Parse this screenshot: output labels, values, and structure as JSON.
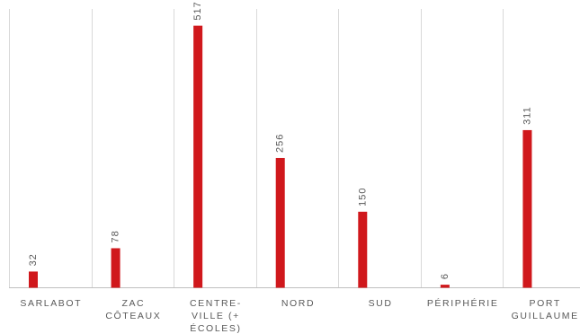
{
  "chart_data": {
    "type": "bar",
    "categories": [
      [
        "SARLABOT"
      ],
      [
        "ZAC",
        "CÔTEAUX"
      ],
      [
        "CENTRE-",
        "VILLE (+",
        "ÉCOLES)"
      ],
      [
        "NORD"
      ],
      [
        "SUD"
      ],
      [
        "PÉRIPHÉRIE"
      ],
      [
        "PORT",
        "GUILLAUME"
      ]
    ],
    "values": [
      32,
      78,
      517,
      256,
      150,
      6,
      311
    ],
    "ylim": [
      0,
      550
    ],
    "grid": "vertical",
    "title": "",
    "xlabel": "",
    "ylabel": "",
    "colors": {
      "bar": "#d0181c",
      "grid": "#d9d9d9",
      "axis": "#bfbfbf",
      "text": "#595959"
    }
  }
}
